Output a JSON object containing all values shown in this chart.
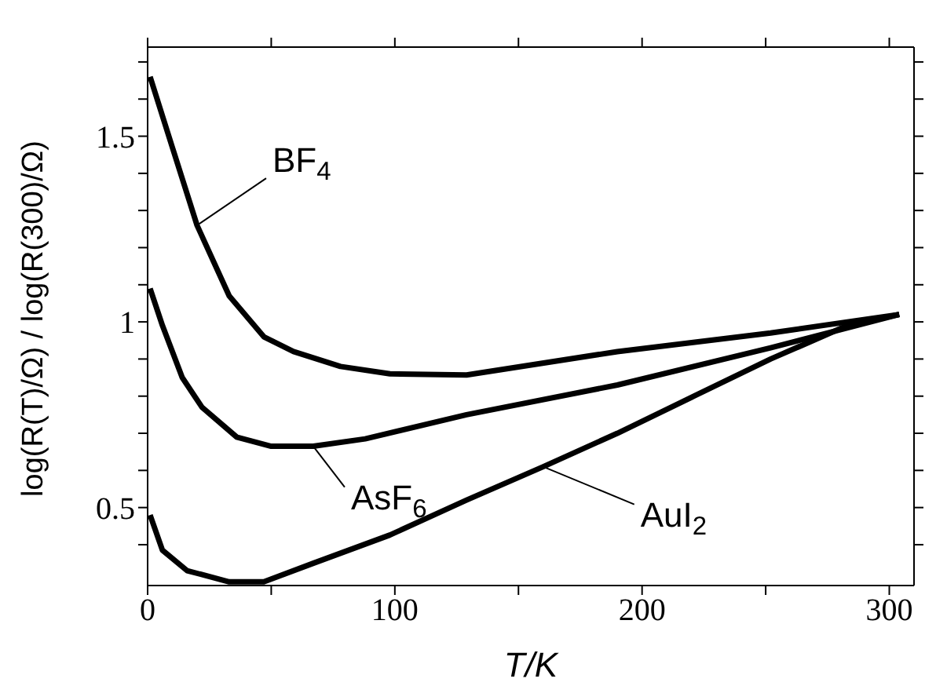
{
  "chart_data": {
    "type": "line",
    "xlabel": "T/K",
    "ylabel": "log(R(T)/Ω) / log(R(300)/Ω)",
    "xlim": [
      0,
      310
    ],
    "ylim": [
      0.29,
      1.74
    ],
    "xticks": [
      0,
      {
        "value": 50,
        "label": null
      },
      100,
      {
        "value": 150,
        "label": null
      },
      200,
      {
        "value": 250,
        "label": null
      },
      300
    ],
    "yticks": [
      {
        "value": 0.4,
        "label": null
      },
      0.5,
      {
        "value": 0.6,
        "label": null
      },
      {
        "value": 0.7,
        "label": null
      },
      {
        "value": 0.8,
        "label": null
      },
      {
        "value": 0.9,
        "label": null
      },
      1,
      {
        "value": 1.1,
        "label": null
      },
      {
        "value": 1.2,
        "label": null
      },
      {
        "value": 1.3,
        "label": null
      },
      {
        "value": 1.4,
        "label": null
      },
      1.5,
      {
        "value": 1.6,
        "label": null
      },
      {
        "value": 1.7,
        "label": null
      }
    ],
    "marker": "none",
    "line_style": "solid",
    "series": [
      {
        "name": "BF$_{4}$",
        "color": "#000000",
        "x": [
          1,
          10,
          20,
          33,
          47,
          59,
          78,
          98,
          129,
          190,
          252,
          304
        ],
        "values": [
          1.66,
          1.47,
          1.26,
          1.07,
          0.96,
          0.92,
          0.88,
          0.86,
          0.857,
          0.92,
          0.97,
          1.02
        ]
      },
      {
        "name": "AsF$_{6}$",
        "color": "#000000",
        "x": [
          1,
          6,
          14,
          22,
          36,
          50,
          67,
          88,
          129,
          190,
          252,
          304
        ],
        "values": [
          1.09,
          0.99,
          0.85,
          0.77,
          0.69,
          0.665,
          0.665,
          0.685,
          0.75,
          0.83,
          0.93,
          1.02
        ]
      },
      {
        "name": "AuI$_{2}$",
        "color": "#000000",
        "x": [
          1,
          6,
          16,
          33,
          47,
          67,
          98,
          129,
          160,
          190,
          221,
          252,
          283,
          304
        ],
        "values": [
          0.48,
          0.385,
          0.33,
          0.3,
          0.3,
          0.35,
          0.426,
          0.52,
          0.61,
          0.7,
          0.8,
          0.9,
          0.99,
          1.02
        ]
      }
    ]
  }
}
